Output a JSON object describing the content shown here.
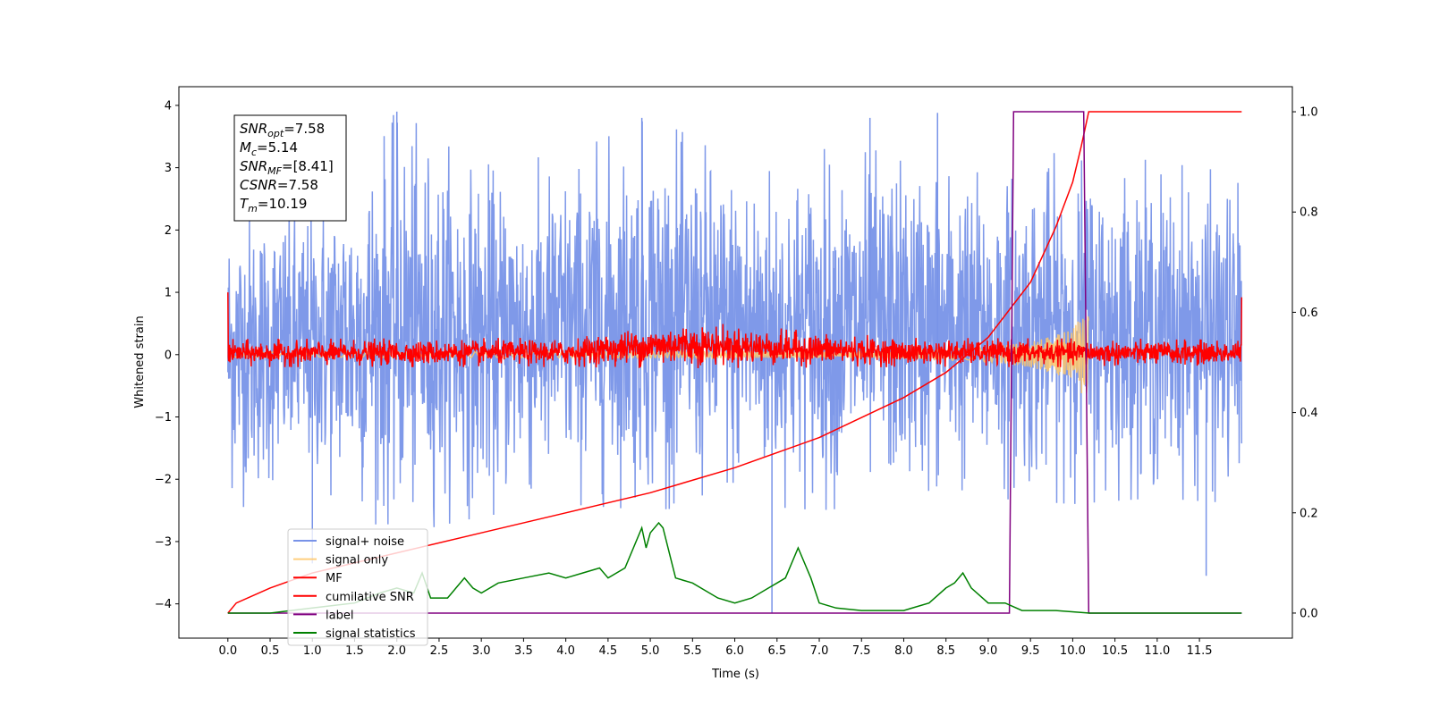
{
  "chart_data": {
    "type": "line",
    "xlabel": "Time (s)",
    "ylabel": "Whitened strain",
    "xlim": [
      -0.58,
      12.6
    ],
    "ylim": [
      -4.55,
      4.3
    ],
    "y2lim": [
      -0.05,
      1.05
    ],
    "x_ticks": [
      "0.0",
      "0.5",
      "1.0",
      "1.5",
      "2.0",
      "2.5",
      "3.0",
      "3.5",
      "4.0",
      "4.5",
      "5.0",
      "5.5",
      "6.0",
      "6.5",
      "7.0",
      "7.5",
      "8.0",
      "8.5",
      "9.0",
      "9.5",
      "10.0",
      "10.5",
      "11.0",
      "11.5"
    ],
    "y_ticks": [
      "4",
      "3",
      "2",
      "1",
      "0",
      "−1",
      "−2",
      "−3",
      "−4"
    ],
    "y2_ticks": [
      "1.0",
      "0.8",
      "0.6",
      "0.4",
      "0.2",
      "0.0"
    ],
    "grid": false,
    "legend_position": "lower-left",
    "info_box": {
      "lines": [
        {
          "label": "SNR",
          "sub": "opt",
          "value": "=7.58"
        },
        {
          "label": "M",
          "sub": "c",
          "value": "=5.14"
        },
        {
          "label": "SNR",
          "sub": "MF",
          "value": "=[8.41]"
        },
        {
          "label": "CSNR",
          "sub": "",
          "value": "=7.58"
        },
        {
          "label": "T",
          "sub": "m",
          "value": "=10.19"
        }
      ]
    },
    "series": [
      {
        "name": "signal+ noise",
        "color": "#7893e8",
        "kind": "noise",
        "x_range": [
          0.0,
          12.0
        ],
        "envelope_points": [
          [
            0.0,
            -2.5,
            2.6
          ],
          [
            1.0,
            -2.2,
            2.5
          ],
          [
            2.0,
            -2.9,
            3.9
          ],
          [
            3.0,
            -2.6,
            3.1
          ],
          [
            4.0,
            -2.4,
            3.2
          ],
          [
            5.0,
            -2.5,
            3.8
          ],
          [
            6.0,
            -2.4,
            3.2
          ],
          [
            7.0,
            -2.5,
            3.3
          ],
          [
            8.0,
            -2.4,
            3.3
          ],
          [
            9.0,
            -2.3,
            3.0
          ],
          [
            10.0,
            -2.4,
            3.3
          ],
          [
            11.0,
            -2.3,
            3.1
          ],
          [
            12.0,
            -2.4,
            2.9
          ]
        ],
        "notable_spikes": [
          [
            2.0,
            3.9
          ],
          [
            8.4,
            3.88
          ],
          [
            6.44,
            -4.15
          ],
          [
            7.6,
            3.8
          ],
          [
            4.9,
            3.8
          ],
          [
            1.0,
            -3.35
          ],
          [
            11.58,
            -3.55
          ]
        ]
      },
      {
        "name": "signal only",
        "color": "#ffc768",
        "kind": "chirp",
        "x": [
          0.0,
          8.0,
          9.0,
          9.5,
          10.0,
          10.19
        ],
        "amplitude": [
          0.04,
          0.06,
          0.12,
          0.2,
          0.4,
          0.8
        ]
      },
      {
        "name": "MF",
        "color": "#ff0000",
        "kind": "noise",
        "x_range": [
          0.0,
          12.0
        ],
        "envelope_points": [
          [
            0.0,
            -0.2,
            0.25
          ],
          [
            4.0,
            -0.2,
            0.27
          ],
          [
            5.3,
            -0.22,
            0.55
          ],
          [
            8.0,
            -0.2,
            0.27
          ],
          [
            12.0,
            -0.2,
            0.25
          ]
        ],
        "edge_values": [
          [
            0.0,
            1.0
          ],
          [
            12.0,
            0.92
          ]
        ]
      },
      {
        "name": "cumilative SNR",
        "color": "#ff0000",
        "axis": "right",
        "x": [
          0.0,
          0.1,
          0.5,
          1.0,
          2.0,
          3.0,
          4.0,
          5.0,
          6.0,
          7.0,
          8.0,
          8.5,
          9.0,
          9.5,
          9.8,
          10.0,
          10.1,
          10.19,
          10.2,
          12.0
        ],
        "values": [
          0.0,
          0.02,
          0.05,
          0.08,
          0.12,
          0.16,
          0.2,
          0.24,
          0.29,
          0.35,
          0.43,
          0.48,
          0.55,
          0.66,
          0.77,
          0.86,
          0.93,
          1.0,
          1.0,
          1.0
        ]
      },
      {
        "name": "label",
        "color": "#800080",
        "axis": "right",
        "x": [
          0.0,
          9.25,
          9.3,
          10.13,
          10.19,
          12.0
        ],
        "values": [
          0.0,
          0.0,
          1.0,
          1.0,
          0.0,
          0.0
        ]
      },
      {
        "name": "signal statistics",
        "color": "#008000",
        "axis": "right",
        "x": [
          0.0,
          0.5,
          1.0,
          1.5,
          1.8,
          2.0,
          2.2,
          2.3,
          2.4,
          2.6,
          2.8,
          2.9,
          3.0,
          3.2,
          3.5,
          3.8,
          4.0,
          4.2,
          4.4,
          4.5,
          4.7,
          4.9,
          4.95,
          5.0,
          5.1,
          5.15,
          5.3,
          5.5,
          5.8,
          6.0,
          6.2,
          6.4,
          6.5,
          6.6,
          6.75,
          6.9,
          7.0,
          7.2,
          7.5,
          8.0,
          8.3,
          8.5,
          8.6,
          8.7,
          8.8,
          9.0,
          9.2,
          9.4,
          9.8,
          10.2,
          11.0,
          12.0
        ],
        "values": [
          0.0,
          0.0,
          0.01,
          0.02,
          0.04,
          0.05,
          0.04,
          0.08,
          0.03,
          0.03,
          0.07,
          0.05,
          0.04,
          0.06,
          0.07,
          0.08,
          0.07,
          0.08,
          0.09,
          0.07,
          0.09,
          0.17,
          0.13,
          0.16,
          0.18,
          0.17,
          0.07,
          0.06,
          0.03,
          0.02,
          0.03,
          0.05,
          0.06,
          0.07,
          0.13,
          0.07,
          0.02,
          0.01,
          0.005,
          0.005,
          0.02,
          0.05,
          0.06,
          0.08,
          0.05,
          0.02,
          0.02,
          0.005,
          0.005,
          0.0,
          0.0,
          0.0
        ]
      }
    ]
  }
}
